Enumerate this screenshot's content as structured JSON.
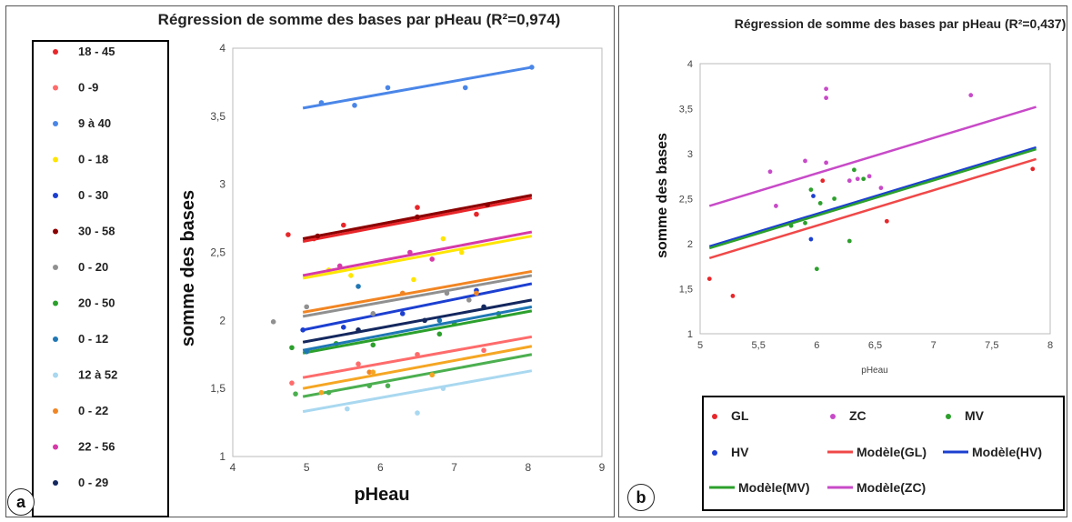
{
  "panels": {
    "a": "a",
    "b": "b"
  },
  "chart_data": [
    {
      "type": "scatter",
      "title": "Régression de somme des bases par pHeau (R²=0,974)",
      "xlabel": "pHeau",
      "ylabel": "somme des bases",
      "xlim": [
        4,
        9
      ],
      "ylim": [
        1,
        4
      ],
      "xticks": [
        "4",
        "5",
        "6",
        "7",
        "8",
        "9"
      ],
      "yticks": [
        "1",
        "1,5",
        "2",
        "2,5",
        "3",
        "3,5",
        "4"
      ],
      "grid": false,
      "legend_position": "left",
      "series": [
        {
          "name": "18 - 45",
          "color": "#e8262a",
          "line": [
            [
              4.95,
              2.58
            ],
            [
              8.05,
              2.9
            ]
          ],
          "points": [
            [
              4.75,
              2.63
            ],
            [
              5.1,
              2.6
            ],
            [
              5.5,
              2.7
            ],
            [
              6.5,
              2.83
            ],
            [
              7.3,
              2.78
            ]
          ]
        },
        {
          "name": "0 -9",
          "color": "#ff6b6b",
          "line": [
            [
              4.95,
              1.58
            ],
            [
              8.05,
              1.88
            ]
          ],
          "points": [
            [
              4.8,
              1.54
            ],
            [
              5.7,
              1.68
            ],
            [
              6.5,
              1.75
            ],
            [
              7.4,
              1.78
            ]
          ]
        },
        {
          "name": "9 à 40",
          "color": "#4a86e8",
          "line": [
            [
              4.95,
              3.56
            ],
            [
              8.05,
              3.86
            ]
          ],
          "points": [
            [
              5.2,
              3.6
            ],
            [
              5.65,
              3.58
            ],
            [
              6.1,
              3.71
            ],
            [
              7.15,
              3.71
            ],
            [
              8.05,
              3.86
            ]
          ]
        },
        {
          "name": "0 - 18",
          "color": "#ffe500",
          "line": [
            [
              4.95,
              2.31
            ],
            [
              8.05,
              2.62
            ]
          ],
          "points": [
            [
              5.3,
              2.37
            ],
            [
              5.6,
              2.33
            ],
            [
              6.45,
              2.3
            ],
            [
              6.85,
              2.6
            ],
            [
              7.1,
              2.5
            ]
          ]
        },
        {
          "name": "0 - 30",
          "color": "#1c3fd1",
          "line": [
            [
              4.95,
              1.93
            ],
            [
              8.05,
              2.27
            ]
          ],
          "points": [
            [
              4.95,
              1.93
            ],
            [
              5.5,
              1.95
            ],
            [
              6.3,
              2.05
            ],
            [
              7.3,
              2.22
            ]
          ]
        },
        {
          "name": "30 - 58",
          "color": "#8b0000",
          "line": [
            [
              4.95,
              2.6
            ],
            [
              8.05,
              2.92
            ]
          ],
          "points": [
            [
              5.15,
              2.62
            ],
            [
              6.5,
              2.76
            ],
            [
              7.45,
              2.85
            ]
          ]
        },
        {
          "name": "0 - 20",
          "color": "#909090",
          "line": [
            [
              4.95,
              2.03
            ],
            [
              8.05,
              2.33
            ]
          ],
          "points": [
            [
              4.55,
              1.99
            ],
            [
              5.0,
              2.1
            ],
            [
              5.9,
              2.05
            ],
            [
              6.9,
              2.2
            ],
            [
              7.2,
              2.15
            ]
          ]
        },
        {
          "name": "20 - 50",
          "color": "#2ca02c",
          "line": [
            [
              4.95,
              1.76
            ],
            [
              8.05,
              2.07
            ]
          ],
          "points": [
            [
              4.8,
              1.8
            ],
            [
              5.4,
              1.83
            ],
            [
              5.9,
              1.82
            ],
            [
              6.8,
              1.9
            ],
            [
              7.0,
              1.98
            ],
            [
              7.6,
              2.05
            ]
          ]
        },
        {
          "name": "0 - 12",
          "color": "#1f77b4",
          "line": [
            [
              4.95,
              1.78
            ],
            [
              8.05,
              2.1
            ]
          ],
          "points": [
            [
              5.0,
              1.77
            ],
            [
              5.7,
              2.25
            ],
            [
              6.8,
              2.0
            ]
          ]
        },
        {
          "name": "12 à 52",
          "color": "#a9d8f0",
          "line": [
            [
              4.95,
              1.33
            ],
            [
              8.05,
              1.63
            ]
          ],
          "points": [
            [
              5.55,
              1.35
            ],
            [
              6.5,
              1.32
            ],
            [
              6.85,
              1.5
            ]
          ]
        },
        {
          "name": "0 - 22",
          "color": "#f28522",
          "line": [
            [
              4.95,
              2.06
            ],
            [
              8.05,
              2.36
            ]
          ],
          "points": [
            [
              5.85,
              1.62
            ],
            [
              6.3,
              2.2
            ],
            [
              6.7,
              1.6
            ],
            [
              7.3,
              2.2
            ]
          ]
        },
        {
          "name": "22 - 56",
          "color": "#d63aa8",
          "line": [
            [
              4.95,
              2.33
            ],
            [
              8.05,
              2.65
            ]
          ],
          "points": [
            [
              5.45,
              2.4
            ],
            [
              6.4,
              2.5
            ],
            [
              6.7,
              2.45
            ]
          ]
        },
        {
          "name": "0 - 29",
          "color": "#14285f",
          "line": [
            [
              4.95,
              1.84
            ],
            [
              8.05,
              2.15
            ]
          ],
          "points": [
            [
              5.7,
              1.93
            ],
            [
              6.6,
              2.0
            ],
            [
              7.4,
              2.1
            ]
          ]
        },
        {
          "name": "",
          "color": "#4caf50",
          "line": [
            [
              4.95,
              1.44
            ],
            [
              8.05,
              1.75
            ]
          ],
          "points": [
            [
              4.85,
              1.46
            ],
            [
              5.3,
              1.47
            ],
            [
              5.85,
              1.52
            ],
            [
              6.1,
              1.52
            ]
          ]
        },
        {
          "name": "",
          "color": "#f5a623",
          "line": [
            [
              4.95,
              1.5
            ],
            [
              8.05,
              1.81
            ]
          ],
          "points": [
            [
              5.2,
              1.47
            ],
            [
              5.9,
              1.62
            ],
            [
              6.7,
              1.6
            ]
          ]
        }
      ]
    },
    {
      "type": "scatter",
      "title": "Régression de somme des bases par pHeau (R²=0,437)",
      "xlabel": "pHeau",
      "ylabel": "somme des bases",
      "xlim": [
        5,
        8
      ],
      "ylim": [
        1,
        4
      ],
      "xticks": [
        "5",
        "5,5",
        "6",
        "6,5",
        "7",
        "7,5",
        "8"
      ],
      "yticks": [
        "1",
        "1,5",
        "2",
        "2,5",
        "3",
        "3,5",
        "4"
      ],
      "grid": false,
      "legend_position": "bottom",
      "points": {
        "GL": {
          "color": "#e8262a",
          "values": [
            [
              5.08,
              1.61
            ],
            [
              5.28,
              1.42
            ],
            [
              6.05,
              2.7
            ],
            [
              6.6,
              2.25
            ],
            [
              7.85,
              2.83
            ]
          ]
        },
        "ZC": {
          "color": "#c84ac8",
          "values": [
            [
              5.6,
              2.8
            ],
            [
              5.65,
              2.42
            ],
            [
              5.9,
              2.92
            ],
            [
              6.08,
              3.72
            ],
            [
              6.08,
              3.62
            ],
            [
              6.08,
              2.9
            ],
            [
              6.28,
              2.7
            ],
            [
              6.35,
              2.72
            ],
            [
              6.45,
              2.75
            ],
            [
              6.55,
              2.62
            ],
            [
              7.32,
              3.65
            ]
          ]
        },
        "MV": {
          "color": "#2ca02c",
          "values": [
            [
              5.78,
              2.2
            ],
            [
              5.9,
              2.23
            ],
            [
              5.95,
              2.6
            ],
            [
              6.0,
              1.72
            ],
            [
              6.03,
              2.45
            ],
            [
              6.15,
              2.5
            ],
            [
              6.28,
              2.03
            ],
            [
              6.32,
              2.82
            ],
            [
              6.4,
              2.72
            ]
          ]
        },
        "HV": {
          "color": "#1c3fd1",
          "values": [
            [
              5.95,
              2.05
            ],
            [
              5.97,
              2.53
            ]
          ]
        }
      },
      "models": {
        "Modèle(GL)": {
          "color": "#f04848",
          "line": [
            [
              5.08,
              1.84
            ],
            [
              7.88,
              2.94
            ]
          ]
        },
        "Modèle(HV)": {
          "color": "#1c3fd1",
          "line": [
            [
              5.08,
              1.97
            ],
            [
              7.88,
              3.07
            ]
          ]
        },
        "Modèle(MV)": {
          "color": "#2ca02c",
          "line": [
            [
              5.08,
              1.95
            ],
            [
              7.88,
              3.05
            ]
          ]
        },
        "Modèle(ZC)": {
          "color": "#c84ac8",
          "line": [
            [
              5.08,
              2.42
            ],
            [
              7.88,
              3.52
            ]
          ]
        }
      },
      "legend": [
        {
          "label": "GL",
          "kind": "marker",
          "color": "#e8262a"
        },
        {
          "label": "ZC",
          "kind": "marker",
          "color": "#c84ac8"
        },
        {
          "label": "MV",
          "kind": "marker",
          "color": "#2ca02c"
        },
        {
          "label": "HV",
          "kind": "marker",
          "color": "#1c3fd1"
        },
        {
          "label": "Modèle(GL)",
          "kind": "line",
          "color": "#f04848"
        },
        {
          "label": "Modèle(HV)",
          "kind": "line",
          "color": "#1c3fd1"
        },
        {
          "label": "Modèle(MV)",
          "kind": "line",
          "color": "#2ca02c"
        },
        {
          "label": "Modèle(ZC)",
          "kind": "line",
          "color": "#c84ac8"
        }
      ]
    }
  ]
}
